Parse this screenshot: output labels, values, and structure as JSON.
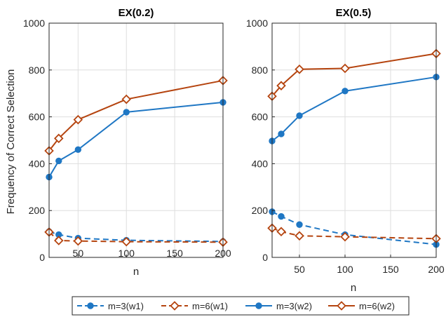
{
  "figure": {
    "ylabel": "Frequency of Correct Selection",
    "colors": {
      "blue": "#1f77c4",
      "red": "#b5440f",
      "grid": "#dedede",
      "axis": "#262626"
    }
  },
  "chart_data": [
    {
      "type": "line",
      "title": "EX(0.2)",
      "xlabel": "n",
      "ylabel": "Frequency of Correct Selection",
      "xlim": [
        20,
        200
      ],
      "ylim": [
        0,
        1000
      ],
      "xticks": [
        50,
        100,
        150,
        200
      ],
      "yticks": [
        0,
        200,
        400,
        600,
        800,
        1000
      ],
      "grid": true,
      "x": [
        20,
        30,
        50,
        100,
        200
      ],
      "series": [
        {
          "name": "m=3(w1)",
          "color": "#1f77c4",
          "dash": true,
          "marker": "dot",
          "values": [
            110,
            97,
            82,
            73,
            68
          ]
        },
        {
          "name": "m=6(w1)",
          "color": "#b5440f",
          "dash": true,
          "marker": "diamond",
          "values": [
            108,
            72,
            70,
            67,
            65
          ]
        },
        {
          "name": "m=3(w2)",
          "color": "#1f77c4",
          "dash": false,
          "marker": "dot",
          "values": [
            343,
            412,
            460,
            620,
            662
          ]
        },
        {
          "name": "m=6(w2)",
          "color": "#b5440f",
          "dash": false,
          "marker": "diamond",
          "values": [
            455,
            508,
            588,
            675,
            755
          ]
        }
      ]
    },
    {
      "type": "line",
      "title": "EX(0.5)",
      "xlabel": "n",
      "xlim": [
        20,
        200
      ],
      "ylim": [
        0,
        1000
      ],
      "xticks": [
        50,
        100,
        150,
        200
      ],
      "yticks": [
        0,
        200,
        400,
        600,
        800,
        1000
      ],
      "grid": true,
      "x": [
        20,
        30,
        50,
        100,
        200
      ],
      "series": [
        {
          "name": "m=3(w1)",
          "color": "#1f77c4",
          "dash": true,
          "marker": "dot",
          "values": [
            195,
            175,
            140,
            97,
            55
          ]
        },
        {
          "name": "m=6(w1)",
          "color": "#b5440f",
          "dash": true,
          "marker": "diamond",
          "values": [
            125,
            110,
            92,
            88,
            80
          ]
        },
        {
          "name": "m=3(w2)",
          "color": "#1f77c4",
          "dash": false,
          "marker": "dot",
          "values": [
            497,
            527,
            605,
            710,
            770
          ]
        },
        {
          "name": "m=6(w2)",
          "color": "#b5440f",
          "dash": false,
          "marker": "diamond",
          "values": [
            688,
            733,
            803,
            807,
            870
          ]
        }
      ]
    }
  ],
  "legend": {
    "placement": "bottom",
    "items": [
      {
        "label": "m=3(w1)",
        "color": "#1f77c4",
        "dash": true,
        "marker": "dot"
      },
      {
        "label": "m=6(w1)",
        "color": "#b5440f",
        "dash": true,
        "marker": "diamond"
      },
      {
        "label": "m=3(w2)",
        "color": "#1f77c4",
        "dash": false,
        "marker": "dot"
      },
      {
        "label": "m=6(w2)",
        "color": "#b5440f",
        "dash": false,
        "marker": "diamond"
      }
    ]
  }
}
